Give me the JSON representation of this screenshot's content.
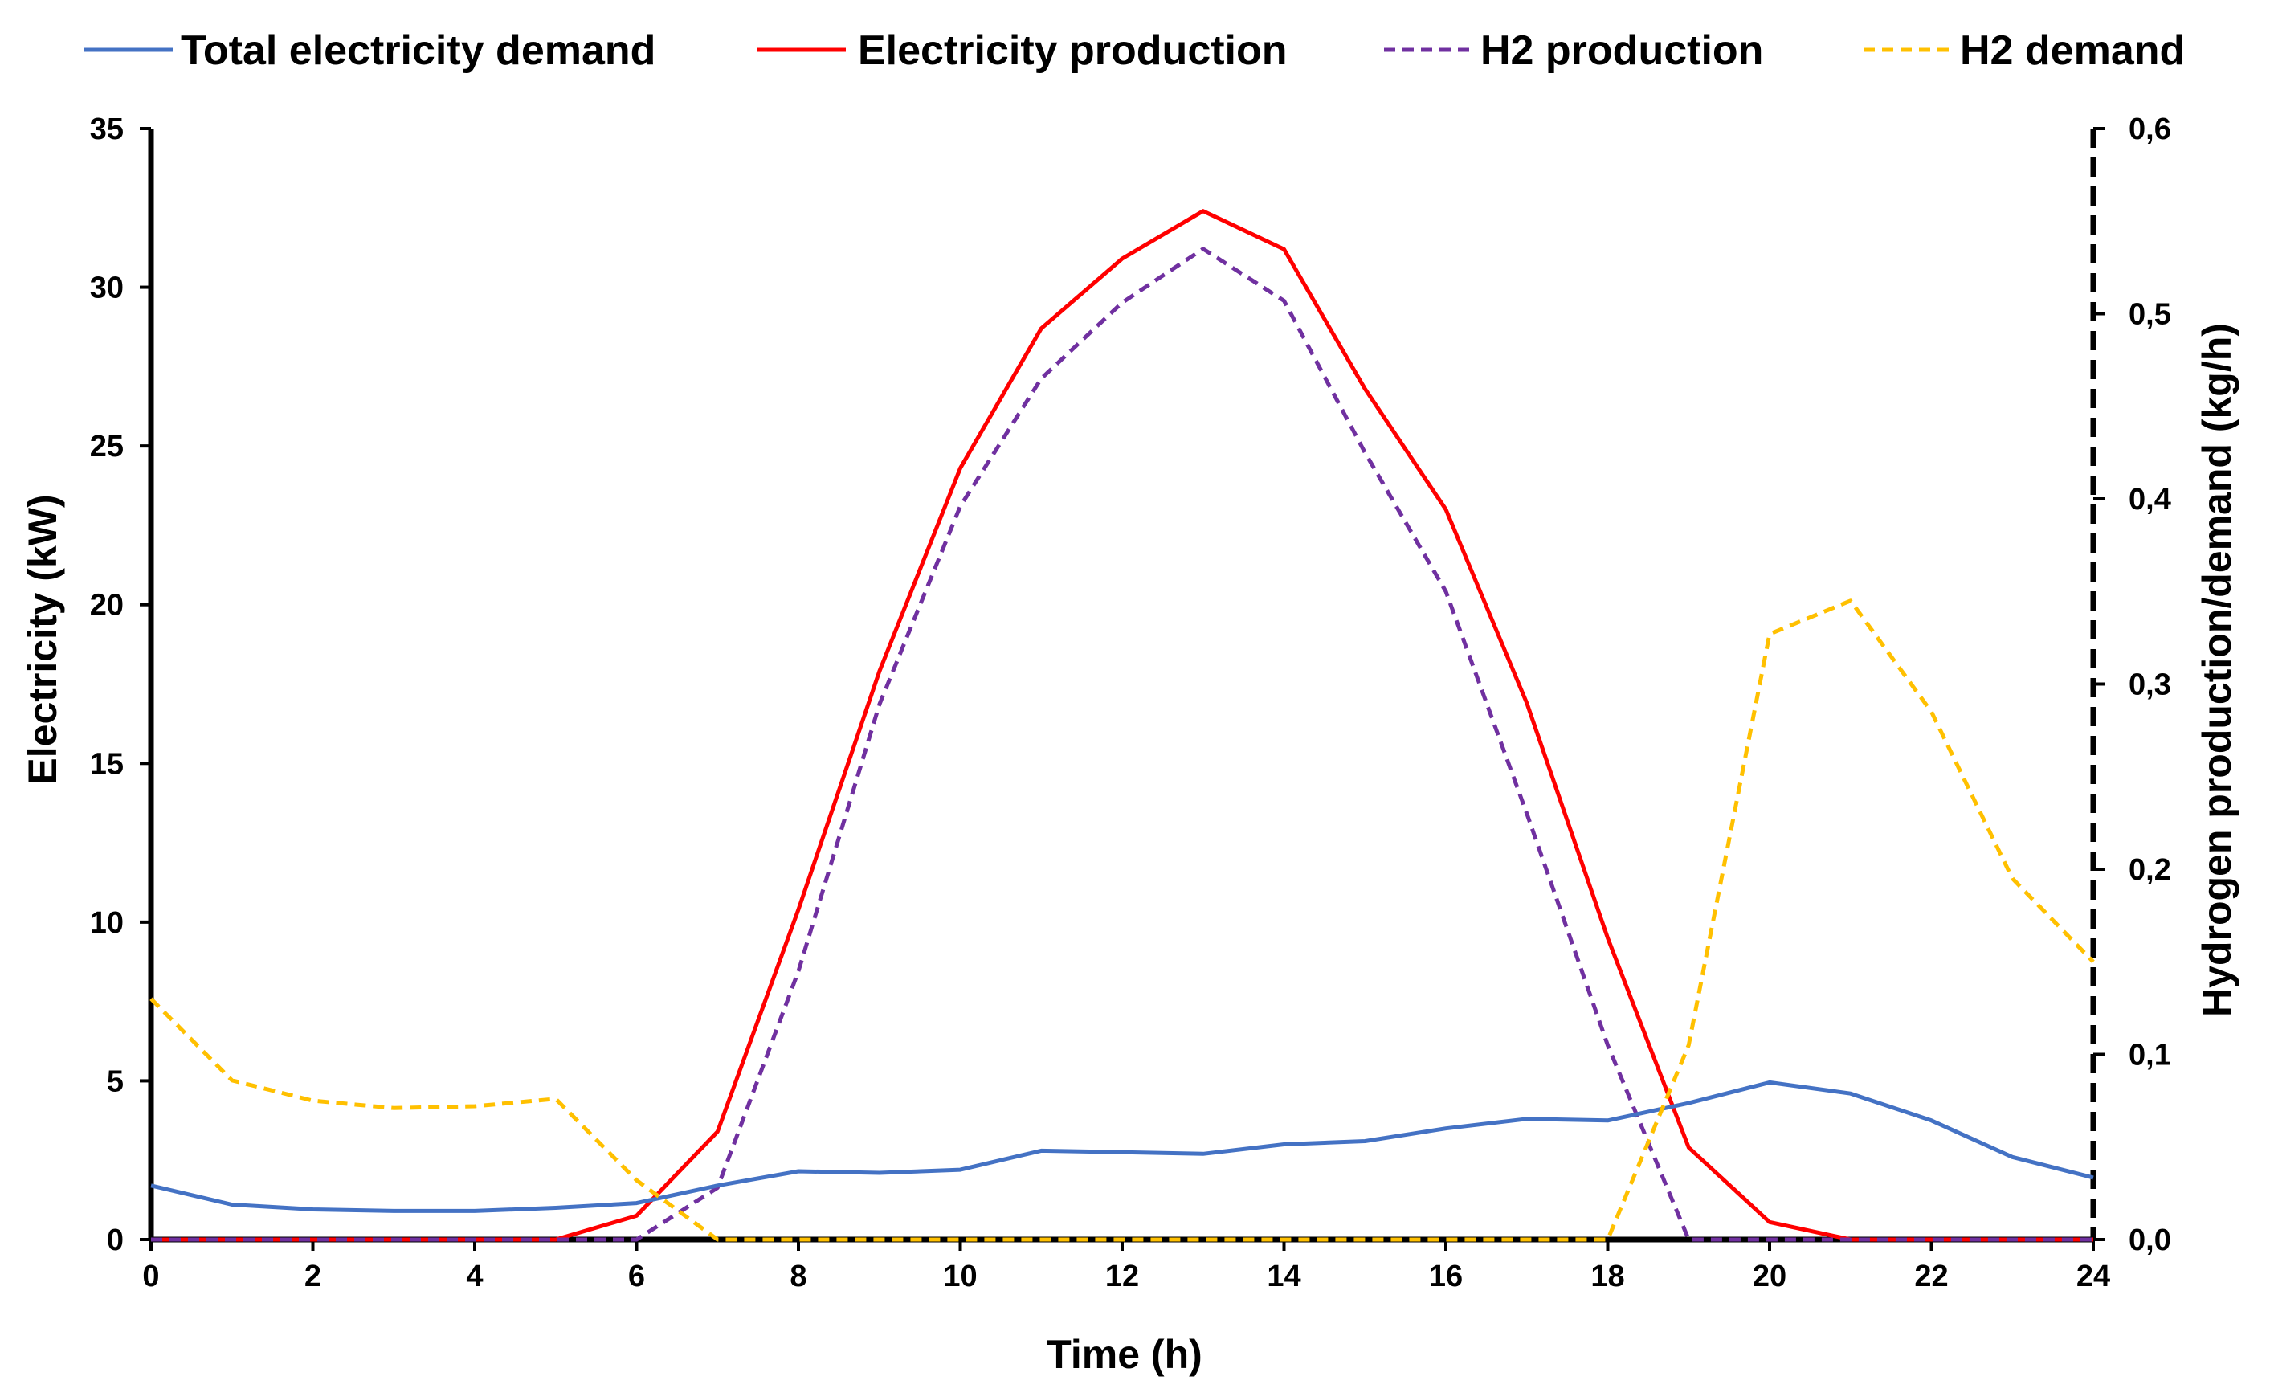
{
  "chart_data": {
    "type": "line",
    "title": "",
    "xlabel": "Time (h)",
    "ylabel_left": "Electricity (kW)",
    "ylabel_right": "Hydrogen production/demand (kg/h)",
    "xlim": [
      0,
      24
    ],
    "ylim_left": [
      0,
      35
    ],
    "ylim_right": [
      0,
      0.6
    ],
    "x_ticks": [
      "0",
      "2",
      "4",
      "6",
      "8",
      "10",
      "12",
      "14",
      "16",
      "18",
      "20",
      "22",
      "24"
    ],
    "y_left_ticks": [
      "0",
      "5",
      "10",
      "15",
      "20",
      "25",
      "30",
      "35"
    ],
    "y_right_ticks": [
      "0,0",
      "0,1",
      "0,2",
      "0,3",
      "0,4",
      "0,5",
      "0,6"
    ],
    "grid": false,
    "legend_position": "top",
    "x": [
      0,
      1,
      2,
      3,
      4,
      5,
      6,
      7,
      8,
      9,
      10,
      11,
      12,
      13,
      14,
      15,
      16,
      17,
      18,
      19,
      20,
      21,
      22,
      23,
      24
    ],
    "series": [
      {
        "name": "Total electricity demand",
        "axis": "left",
        "color": "#4472C4",
        "style": "solid",
        "values": [
          1.7,
          1.1,
          0.95,
          0.9,
          0.9,
          1.0,
          1.15,
          1.7,
          2.15,
          2.1,
          2.2,
          2.8,
          2.75,
          2.7,
          3.0,
          3.1,
          3.5,
          3.8,
          3.75,
          4.3,
          4.95,
          4.6,
          3.75,
          2.6,
          1.95
        ]
      },
      {
        "name": "Electricity production",
        "axis": "left",
        "color": "#FF0000",
        "style": "solid",
        "values": [
          0,
          0,
          0,
          0,
          0,
          0,
          0.75,
          3.4,
          10.4,
          17.9,
          24.3,
          28.7,
          30.9,
          32.4,
          31.2,
          26.8,
          23.0,
          16.9,
          9.5,
          2.9,
          0.55,
          0,
          0,
          0,
          0
        ]
      },
      {
        "name": "H2 production",
        "axis": "right",
        "color": "#7030A0",
        "style": "dashed",
        "values": [
          0,
          0,
          0,
          0,
          0,
          0,
          0,
          0.028,
          0.145,
          0.289,
          0.396,
          0.465,
          0.506,
          0.535,
          0.507,
          0.425,
          0.35,
          0.23,
          0.105,
          0,
          0,
          0,
          0,
          0,
          0
        ]
      },
      {
        "name": "H2 demand",
        "axis": "right",
        "color": "#FFC000",
        "style": "dashed",
        "values": [
          0.13,
          0.086,
          0.075,
          0.071,
          0.072,
          0.076,
          0.032,
          0,
          0,
          0,
          0,
          0,
          0,
          0,
          0,
          0,
          0,
          0,
          0,
          0.105,
          0.327,
          0.345,
          0.285,
          0.195,
          0.15
        ]
      }
    ]
  }
}
